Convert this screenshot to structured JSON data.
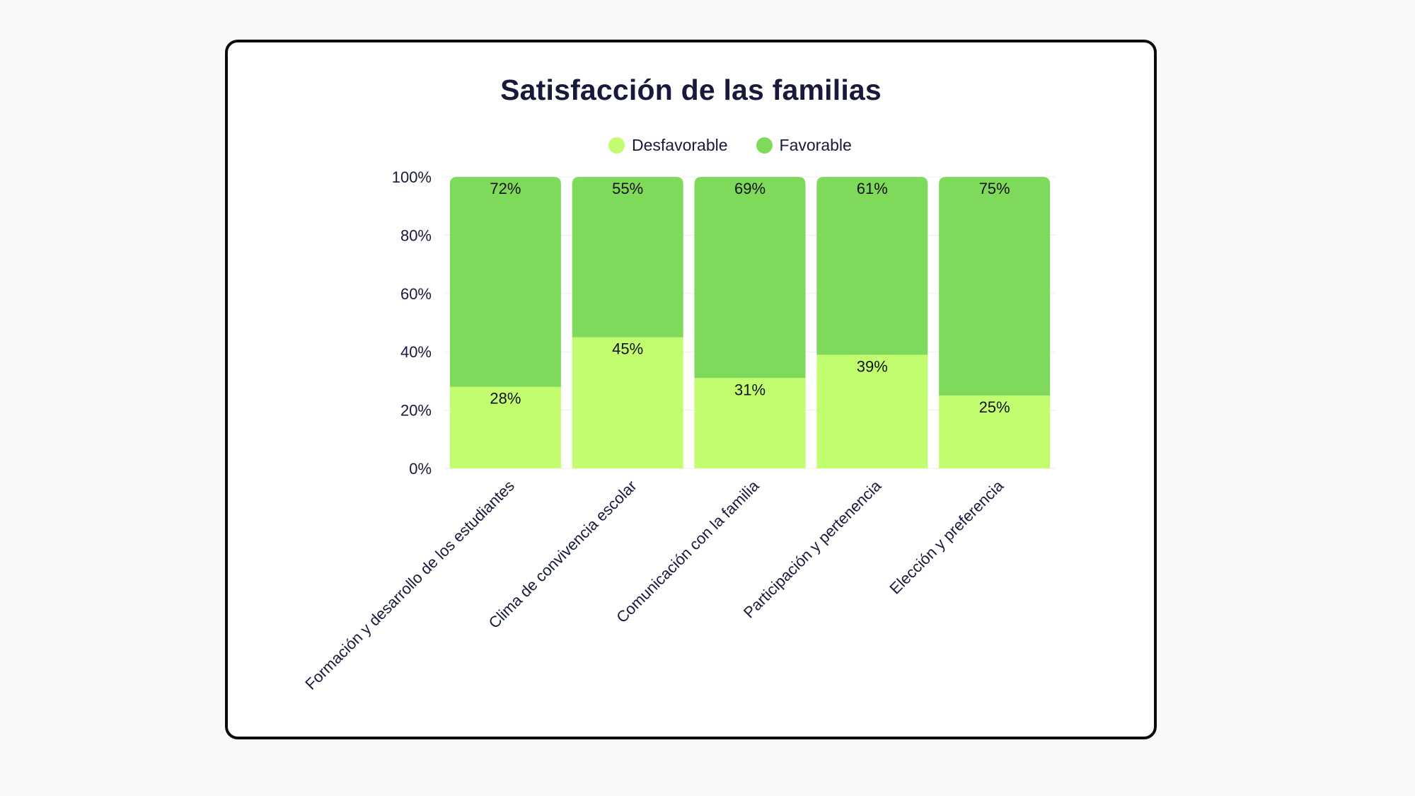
{
  "chart_data": {
    "type": "bar",
    "stacked": true,
    "title": "Satisfacción de las familias",
    "categories": [
      "Formación y desarrollo de los estudiantes",
      "Clima de convivencia escolar",
      "Comunicación con la familia",
      "Participación y pertenencia",
      "Elección y preferencia"
    ],
    "series": [
      {
        "name": "Desfavorable",
        "color": "#c2fd70",
        "values": [
          28,
          45,
          31,
          39,
          25
        ]
      },
      {
        "name": "Favorable",
        "color": "#7fd95a",
        "values": [
          72,
          55,
          69,
          61,
          75
        ]
      }
    ],
    "ylim": [
      0,
      100
    ],
    "yticks": [
      "0%",
      "20%",
      "40%",
      "60%",
      "80%",
      "100%"
    ],
    "value_suffix": "%",
    "legend_position": "top",
    "grid": true
  }
}
